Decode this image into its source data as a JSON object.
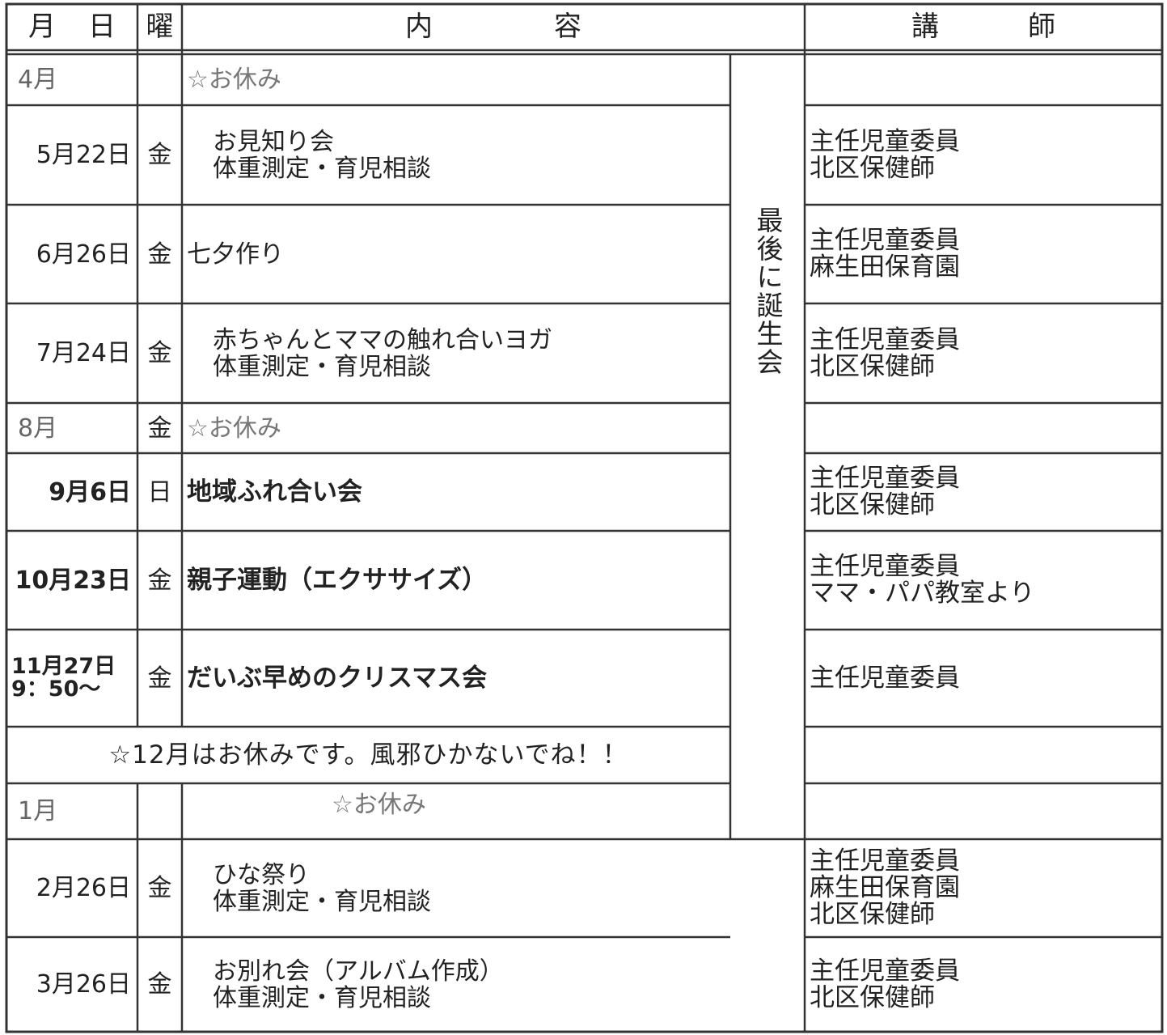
{
  "header": {
    "date": "月日",
    "weekday": "曜",
    "content": "内容",
    "teacher": "講師"
  },
  "side_note": "最後に誕生会",
  "rows": [
    {
      "date": [
        "4月"
      ],
      "content": [
        "☆お休み"
      ]
    },
    {
      "date": [
        "5月22日"
      ],
      "weekday": "金",
      "content": [
        "お見知り会",
        "体重測定・育児相談"
      ],
      "teacher": [
        "主任児童委員",
        "北区保健師"
      ]
    },
    {
      "date": [
        "6月26日"
      ],
      "weekday": "金",
      "content": [
        "七夕作り"
      ],
      "teacher": [
        "主任児童委員",
        "麻生田保育園"
      ]
    },
    {
      "date": [
        "7月24日"
      ],
      "weekday": "金",
      "content": [
        "赤ちゃんとママの触れ合いヨガ",
        "体重測定・育児相談"
      ],
      "teacher": [
        "主任児童委員",
        "北区保健師"
      ]
    },
    {
      "date": [
        "8月"
      ],
      "weekday": "金",
      "content": [
        "☆お休み"
      ]
    },
    {
      "date": [
        "9月6日"
      ],
      "weekday": "日",
      "content": [
        "地域ふれ合い会"
      ],
      "teacher": [
        "主任児童委員",
        "北区保健師"
      ]
    },
    {
      "date": [
        "10月23日"
      ],
      "weekday": "金",
      "content": [
        "親子運動（エクササイズ）"
      ],
      "teacher": [
        "主任児童委員",
        "ママ・パパ教室より"
      ]
    },
    {
      "date": [
        "11月27日",
        "9：50～"
      ],
      "weekday": "金",
      "content": [
        "だいぶ早めのクリスマス会"
      ],
      "teacher": [
        "主任児童委員"
      ]
    },
    {
      "notice": "☆12月はお休みです。風邪ひかないでね！！"
    },
    {
      "date": [
        "1月"
      ],
      "content": [
        "☆お休み"
      ]
    },
    {
      "date": [
        "2月26日"
      ],
      "weekday": "金",
      "content": [
        "ひな祭り",
        "体重測定・育児相談"
      ],
      "teacher": [
        "主任児童委員",
        "麻生田保育園",
        "北区保健師"
      ]
    },
    {
      "date": [
        "3月26日"
      ],
      "weekday": "金",
      "content": [
        "お別れ会（アルバム作成）",
        "体重測定・育児相談"
      ],
      "teacher": [
        "主任児童委員",
        "北区保健師"
      ]
    }
  ]
}
